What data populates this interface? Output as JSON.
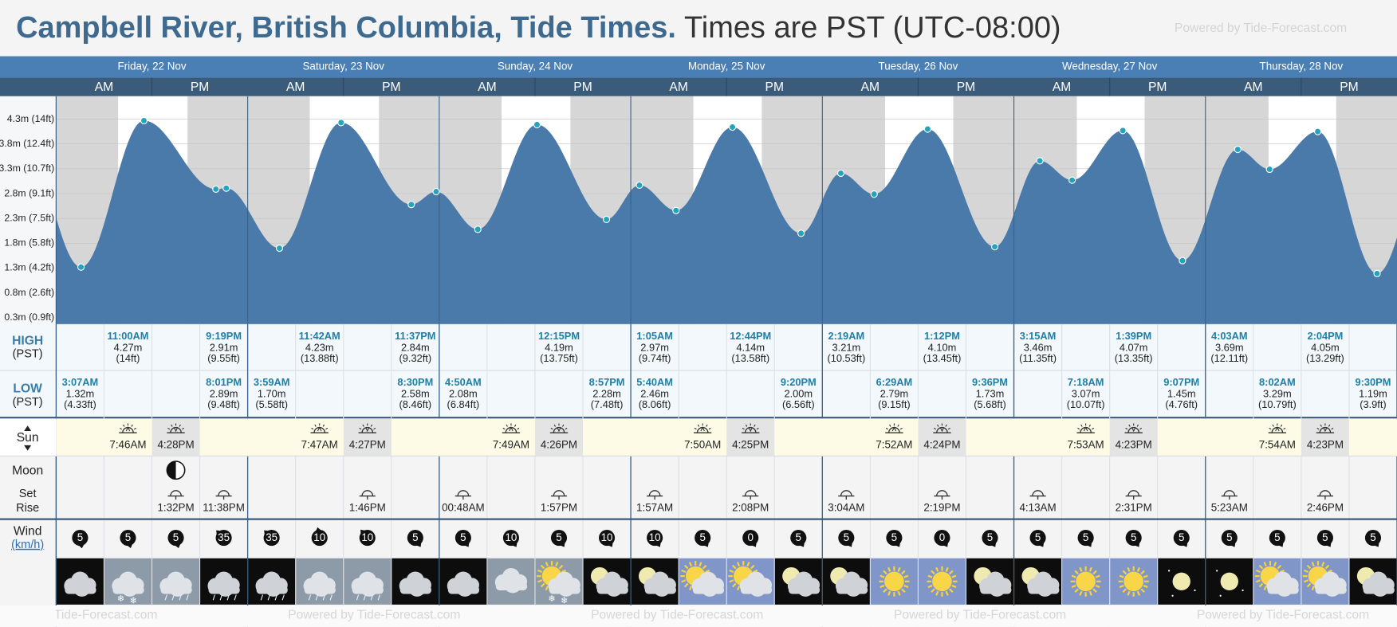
{
  "title": "Campbell River, British Columbia, Tide Times.",
  "subtitle": "Times are PST (UTC-08:00)",
  "powered": "Powered by Tide-Forecast.com",
  "am": "AM",
  "pm": "PM",
  "row_labels": {
    "high": "HIGH",
    "high_tz": "(PST)",
    "low": "LOW",
    "low_tz": "(PST)",
    "sun": "Sun",
    "moon": "Moon",
    "set": "Set",
    "rise": "Rise",
    "wind": "Wind",
    "wind_unit": "(km/h)"
  },
  "ylim": [
    0.17,
    4.76
  ],
  "yticks": [
    {
      "value": 0.3,
      "label": "0.3m (0.9ft)"
    },
    {
      "value": 0.8,
      "label": "0.8m (2.6ft)"
    },
    {
      "value": 1.3,
      "label": "1.3m (4.2ft)"
    },
    {
      "value": 1.8,
      "label": "1.8m (5.8ft)"
    },
    {
      "value": 2.3,
      "label": "2.3m (7.5ft)"
    },
    {
      "value": 2.8,
      "label": "2.8m (9.1ft)"
    },
    {
      "value": 3.3,
      "label": "3.3m (10.7ft)"
    },
    {
      "value": 3.8,
      "label": "3.8m (12.4ft)"
    },
    {
      "value": 4.3,
      "label": "4.3m (14ft)"
    }
  ],
  "days": [
    {
      "label": "Friday, 22 Nov",
      "sunrise": "7:46AM",
      "sunset": "4:28PM",
      "phase": "first-quarter",
      "tides": [
        {
          "type": "low",
          "time": "3:07AM",
          "height": 1.32,
          "height_label": "1.32m",
          "feet": "(4.33ft)"
        },
        {
          "type": "high",
          "time": "11:00AM",
          "height": 4.27,
          "height_label": "4.27m",
          "feet": "(14ft)"
        },
        {
          "type": "low",
          "time": "8:01PM",
          "height": 2.89,
          "height_label": "2.89m",
          "feet": "(9.48ft)"
        },
        {
          "type": "high",
          "time": "9:19PM",
          "height": 2.91,
          "height_label": "2.91m",
          "feet": "(9.55ft)"
        }
      ],
      "moon": [
        {
          "event": "set",
          "time": "1:32PM"
        },
        {
          "event": "rise",
          "time": "11:38PM"
        }
      ]
    },
    {
      "label": "Saturday, 23 Nov",
      "sunrise": "7:47AM",
      "sunset": "4:27PM",
      "tides": [
        {
          "type": "low",
          "time": "3:59AM",
          "height": 1.7,
          "height_label": "1.70m",
          "feet": "(5.58ft)"
        },
        {
          "type": "high",
          "time": "11:42AM",
          "height": 4.23,
          "height_label": "4.23m",
          "feet": "(13.88ft)"
        },
        {
          "type": "low",
          "time": "8:30PM",
          "height": 2.58,
          "height_label": "2.58m",
          "feet": "(8.46ft)"
        },
        {
          "type": "high",
          "time": "11:37PM",
          "height": 2.84,
          "height_label": "2.84m",
          "feet": "(9.32ft)"
        }
      ],
      "moon": [
        {
          "event": "set",
          "time": "1:46PM"
        }
      ]
    },
    {
      "label": "Sunday, 24 Nov",
      "sunrise": "7:49AM",
      "sunset": "4:26PM",
      "tides": [
        {
          "type": "low",
          "time": "4:50AM",
          "height": 2.08,
          "height_label": "2.08m",
          "feet": "(6.84ft)"
        },
        {
          "type": "high",
          "time": "12:15PM",
          "height": 4.19,
          "height_label": "4.19m",
          "feet": "(13.75ft)"
        },
        {
          "type": "low",
          "time": "8:57PM",
          "height": 2.28,
          "height_label": "2.28m",
          "feet": "(7.48ft)"
        }
      ],
      "moon": [
        {
          "event": "rise",
          "time": "00:48AM"
        },
        {
          "event": "set",
          "time": "1:57PM"
        }
      ]
    },
    {
      "label": "Monday, 25 Nov",
      "sunrise": "7:50AM",
      "sunset": "4:25PM",
      "tides": [
        {
          "type": "high",
          "time": "1:05AM",
          "height": 2.97,
          "height_label": "2.97m",
          "feet": "(9.74ft)"
        },
        {
          "type": "low",
          "time": "5:40AM",
          "height": 2.46,
          "height_label": "2.46m",
          "feet": "(8.06ft)"
        },
        {
          "type": "high",
          "time": "12:44PM",
          "height": 4.14,
          "height_label": "4.14m",
          "feet": "(13.58ft)"
        },
        {
          "type": "low",
          "time": "9:20PM",
          "height": 2.0,
          "height_label": "2.00m",
          "feet": "(6.56ft)"
        }
      ],
      "moon": [
        {
          "event": "rise",
          "time": "1:57AM"
        },
        {
          "event": "set",
          "time": "2:08PM"
        }
      ]
    },
    {
      "label": "Tuesday, 26 Nov",
      "sunrise": "7:52AM",
      "sunset": "4:24PM",
      "tides": [
        {
          "type": "high",
          "time": "2:19AM",
          "height": 3.21,
          "height_label": "3.21m",
          "feet": "(10.53ft)"
        },
        {
          "type": "low",
          "time": "6:29AM",
          "height": 2.79,
          "height_label": "2.79m",
          "feet": "(9.15ft)"
        },
        {
          "type": "high",
          "time": "1:12PM",
          "height": 4.1,
          "height_label": "4.10m",
          "feet": "(13.45ft)"
        },
        {
          "type": "low",
          "time": "9:36PM",
          "height": 1.73,
          "height_label": "1.73m",
          "feet": "(5.68ft)"
        }
      ],
      "moon": [
        {
          "event": "rise",
          "time": "3:04AM"
        },
        {
          "event": "set",
          "time": "2:19PM"
        }
      ]
    },
    {
      "label": "Wednesday, 27 Nov",
      "sunrise": "7:53AM",
      "sunset": "4:23PM",
      "tides": [
        {
          "type": "high",
          "time": "3:15AM",
          "height": 3.46,
          "height_label": "3.46m",
          "feet": "(11.35ft)"
        },
        {
          "type": "low",
          "time": "7:18AM",
          "height": 3.07,
          "height_label": "3.07m",
          "feet": "(10.07ft)"
        },
        {
          "type": "high",
          "time": "1:39PM",
          "height": 4.07,
          "height_label": "4.07m",
          "feet": "(13.35ft)"
        },
        {
          "type": "low",
          "time": "9:07PM",
          "height": 1.45,
          "height_label": "1.45m",
          "feet": "(4.76ft)"
        }
      ],
      "moon": [
        {
          "event": "rise",
          "time": "4:13AM"
        },
        {
          "event": "set",
          "time": "2:31PM"
        }
      ]
    },
    {
      "label": "Thursday, 28 Nov",
      "sunrise": "7:54AM",
      "sunset": "4:23PM",
      "tides": [
        {
          "type": "high",
          "time": "4:03AM",
          "height": 3.69,
          "height_label": "3.69m",
          "feet": "(12.11ft)"
        },
        {
          "type": "low",
          "time": "8:02AM",
          "height": 3.29,
          "height_label": "3.29m",
          "feet": "(10.79ft)"
        },
        {
          "type": "high",
          "time": "2:04PM",
          "height": 4.05,
          "height_label": "4.05m",
          "feet": "(13.29ft)"
        },
        {
          "type": "low",
          "time": "9:30PM",
          "height": 1.19,
          "height_label": "1.19m",
          "feet": "(3.9ft)"
        }
      ],
      "moon": [
        {
          "event": "rise",
          "time": "5:23AM"
        },
        {
          "event": "set",
          "time": "2:46PM"
        }
      ]
    }
  ],
  "wind": [
    {
      "speed": 5,
      "dir": 170
    },
    {
      "speed": 5,
      "dir": 165
    },
    {
      "speed": 5,
      "dir": 165
    },
    {
      "speed": 35,
      "dir": 315
    },
    {
      "speed": 35,
      "dir": 315
    },
    {
      "speed": 10,
      "dir": 350
    },
    {
      "speed": 10,
      "dir": 320
    },
    {
      "speed": 5,
      "dir": 150
    },
    {
      "speed": 5,
      "dir": 150
    },
    {
      "speed": 10,
      "dir": 150
    },
    {
      "speed": 5,
      "dir": 150
    },
    {
      "speed": 10,
      "dir": 150
    },
    {
      "speed": 10,
      "dir": 150
    },
    {
      "speed": 5,
      "dir": 150
    },
    {
      "speed": 0,
      "dir": 150
    },
    {
      "speed": 5,
      "dir": 150
    },
    {
      "speed": 5,
      "dir": 150
    },
    {
      "speed": 5,
      "dir": 150
    },
    {
      "speed": 0,
      "dir": 150
    },
    {
      "speed": 5,
      "dir": 150
    },
    {
      "speed": 5,
      "dir": 150
    },
    {
      "speed": 5,
      "dir": 150
    },
    {
      "speed": 5,
      "dir": 150
    },
    {
      "speed": 5,
      "dir": 150
    },
    {
      "speed": 5,
      "dir": 150
    },
    {
      "speed": 5,
      "dir": 150
    },
    {
      "speed": 5,
      "dir": 150
    },
    {
      "speed": 5,
      "dir": 150
    }
  ],
  "weather": [
    "cloud-night",
    "cloud-snow",
    "cloud-rain",
    "cloud-rain-night",
    "cloud-rain-night",
    "cloud-rain",
    "cloud-rain",
    "cloud-night",
    "cloud-night",
    "overcast",
    "sun-cloud-snow",
    "moon-cloud",
    "moon-cloud",
    "sun-cloud",
    "sun-cloud",
    "moon-cloud",
    "moon-cloud",
    "sun",
    "sun",
    "moon-cloud",
    "moon-cloud",
    "sun",
    "sun",
    "moon",
    "moon",
    "sun-cloud",
    "sun-cloud",
    "moon-cloud"
  ]
}
